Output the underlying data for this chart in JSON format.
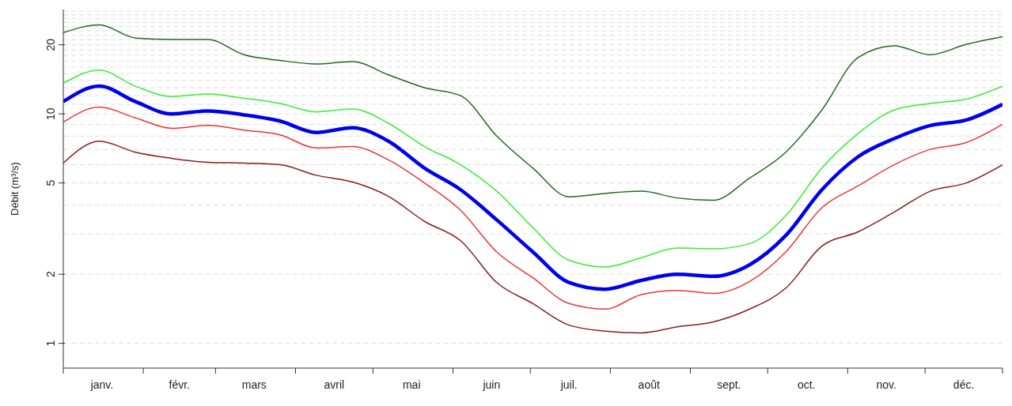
{
  "chart_data": {
    "type": "line",
    "ylabel": "Débit (m³/s)",
    "log": "y",
    "grid": "y",
    "marker": "none",
    "line_style": "solid",
    "x": [
      "--01-01",
      "--01-15",
      "--01-29",
      "--02-12",
      "--02-26",
      "--03-12",
      "--03-26",
      "--04-09",
      "--04-23",
      "--05-07",
      "--05-21",
      "--06-04",
      "--06-18",
      "--07-02",
      "--07-16",
      "--07-30",
      "--08-13",
      "--08-27",
      "--09-10",
      "--09-24",
      "--10-08",
      "--10-22",
      "--11-05",
      "--11-19",
      "--12-03",
      "--12-17",
      "--12-31"
    ],
    "xlim": [
      "--01-01",
      "--12-31"
    ],
    "xticks": [
      {
        "value": "--01-01",
        "label": null
      },
      {
        "value": "--01-16",
        "label": "janv."
      },
      {
        "value": "--02-01",
        "label": null
      },
      {
        "value": "--02-15",
        "label": "févr."
      },
      {
        "value": "--03-01",
        "label": null
      },
      {
        "value": "--03-16",
        "label": "mars"
      },
      {
        "value": "--04-01",
        "label": null
      },
      {
        "value": "--04-16",
        "label": "avril"
      },
      {
        "value": "--05-01",
        "label": null
      },
      {
        "value": "--05-16",
        "label": "mai"
      },
      {
        "value": "--06-01",
        "label": null
      },
      {
        "value": "--06-16",
        "label": "juin"
      },
      {
        "value": "--07-01",
        "label": null
      },
      {
        "value": "--07-16",
        "label": "juil."
      },
      {
        "value": "--08-01",
        "label": null
      },
      {
        "value": "--08-16",
        "label": "août"
      },
      {
        "value": "--09-01",
        "label": null
      },
      {
        "value": "--09-16",
        "label": "sept."
      },
      {
        "value": "--10-01",
        "label": null
      },
      {
        "value": "--10-16",
        "label": "oct."
      },
      {
        "value": "--11-01",
        "label": null
      },
      {
        "value": "--11-16",
        "label": "nov."
      },
      {
        "value": "--12-01",
        "label": null
      },
      {
        "value": "--12-16",
        "label": "déc."
      },
      {
        "value": "--12-31",
        "label": null
      }
    ],
    "ylim": [
      0.78,
      28.5
    ],
    "yticks": [
      1,
      2,
      {
        "value": 3,
        "label": null
      },
      {
        "value": 4,
        "label": null
      },
      5,
      {
        "value": 6,
        "label": null
      },
      {
        "value": 7,
        "label": null
      },
      {
        "value": 8,
        "label": null
      },
      {
        "value": 9,
        "label": null
      },
      10,
      {
        "value": 11,
        "label": null
      },
      {
        "value": 12,
        "label": null
      },
      {
        "value": 13,
        "label": null
      },
      {
        "value": 14,
        "label": null
      },
      {
        "value": 15,
        "label": null
      },
      {
        "value": 16,
        "label": null
      },
      {
        "value": 17,
        "label": null
      },
      {
        "value": 18,
        "label": null
      },
      {
        "value": 19,
        "label": null
      },
      20,
      {
        "value": 21,
        "label": null
      },
      {
        "value": 22,
        "label": null
      },
      {
        "value": 23,
        "label": null
      },
      {
        "value": 24,
        "label": null
      },
      {
        "value": 25,
        "label": null
      },
      {
        "value": 26,
        "label": null
      },
      {
        "value": 27,
        "label": null
      },
      {
        "value": 28,
        "label": null
      }
    ],
    "series": [
      {
        "color": "#1e6b1e",
        "values": [
          22.6,
          24.4,
          21.4,
          21.1,
          21.1,
          18.1,
          17.1,
          16.5,
          16.9,
          14.8,
          13.0,
          12.0,
          8.0,
          5.8,
          4.35,
          4.5,
          4.6,
          4.3,
          4.2,
          5.25,
          6.8,
          10.4,
          17.6,
          19.8,
          18.1,
          20.1,
          21.7
        ]
      },
      {
        "color": "#33ee33",
        "values": [
          13.6,
          15.5,
          13.2,
          11.9,
          12.2,
          11.7,
          11.1,
          10.2,
          10.5,
          9.1,
          7.2,
          6.0,
          4.6,
          3.19,
          2.3,
          2.15,
          2.36,
          2.6,
          2.58,
          2.72,
          3.6,
          5.8,
          8.2,
          10.4,
          11.1,
          11.6,
          13.2
        ]
      },
      {
        "color": "#0000ee",
        "values": [
          11.3,
          13.2,
          11.3,
          10.0,
          10.3,
          9.9,
          9.3,
          8.3,
          8.7,
          7.6,
          5.8,
          4.67,
          3.45,
          2.5,
          1.84,
          1.72,
          1.88,
          2.0,
          1.96,
          2.2,
          2.95,
          4.67,
          6.5,
          7.8,
          8.9,
          9.4,
          11.0
        ]
      },
      {
        "color": "#ee3333",
        "values": [
          9.2,
          10.7,
          9.6,
          8.65,
          8.9,
          8.5,
          8.1,
          7.1,
          7.2,
          6.3,
          5.0,
          3.8,
          2.5,
          1.93,
          1.49,
          1.41,
          1.63,
          1.7,
          1.65,
          1.86,
          2.5,
          3.9,
          4.85,
          6.0,
          7.0,
          7.5,
          9.0
        ]
      },
      {
        "color": "#8b1a1a",
        "values": [
          6.1,
          7.6,
          6.8,
          6.4,
          6.15,
          6.1,
          6.0,
          5.4,
          5.05,
          4.37,
          3.4,
          2.8,
          1.84,
          1.49,
          1.2,
          1.13,
          1.11,
          1.18,
          1.24,
          1.41,
          1.74,
          2.65,
          3.06,
          3.73,
          4.6,
          5.0,
          6.0
        ]
      }
    ]
  }
}
